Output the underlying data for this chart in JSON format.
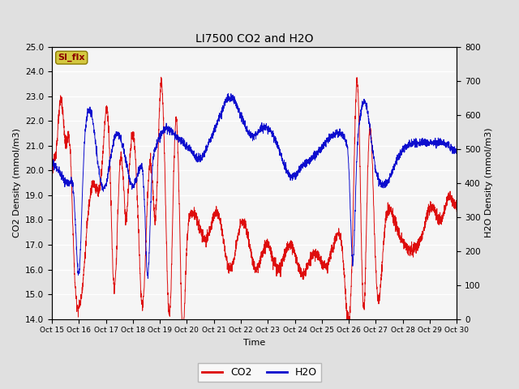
{
  "title": "LI7500 CO2 and H2O",
  "xlabel": "Time",
  "ylabel_left": "CO2 Density (mmol/m3)",
  "ylabel_right": "H2O Density (mmol/m3)",
  "ylim_left": [
    14.0,
    25.0
  ],
  "ylim_right": [
    0,
    800
  ],
  "yticks_left": [
    14.0,
    15.0,
    16.0,
    17.0,
    18.0,
    19.0,
    20.0,
    21.0,
    22.0,
    23.0,
    24.0,
    25.0
  ],
  "yticks_right": [
    0,
    100,
    200,
    300,
    400,
    500,
    600,
    700,
    800
  ],
  "xtick_labels": [
    "Oct 15",
    "Oct 16",
    "Oct 17",
    "Oct 18",
    "Oct 19",
    "Oct 20",
    "Oct 21",
    "Oct 22",
    "Oct 23",
    "Oct 24",
    "Oct 25",
    "Oct 26",
    "Oct 27",
    "Oct 28",
    "Oct 29",
    "Oct 30"
  ],
  "background_color": "#e0e0e0",
  "plot_bg_color": "#f5f5f5",
  "grid_color": "#ffffff",
  "co2_color": "#dd0000",
  "h2o_color": "#0000cc",
  "legend_label_co2": "CO2",
  "legend_label_h2o": "H2O",
  "watermark_text": "SI_flx",
  "watermark_fg": "#8b0000",
  "watermark_bg": "#d4c840",
  "watermark_border": "#8a7a00"
}
